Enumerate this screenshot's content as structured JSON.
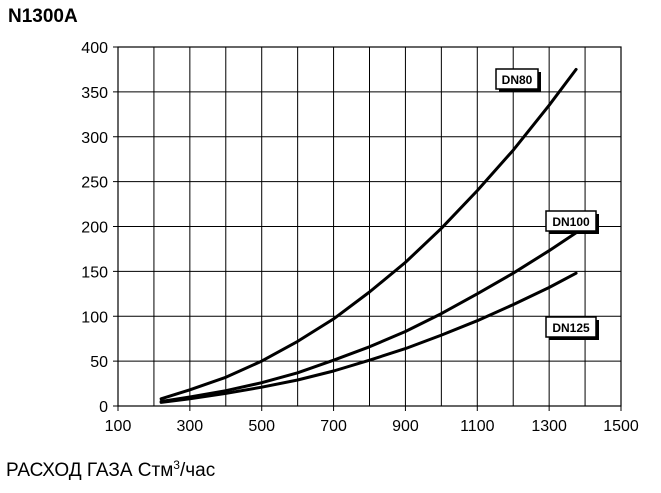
{
  "chart_data": {
    "type": "line",
    "title": "N1300A",
    "xlabel_prefix": "РАСХОД ГАЗА Стм",
    "xlabel_sup": "3",
    "xlabel_suffix": "/час",
    "ylabel": "",
    "xlim": [
      100,
      1500
    ],
    "ylim": [
      0,
      400
    ],
    "x_ticks": [
      100,
      300,
      500,
      700,
      900,
      1100,
      1300,
      1500
    ],
    "y_ticks": [
      0,
      50,
      100,
      150,
      200,
      250,
      300,
      350,
      400
    ],
    "grid": true,
    "series": [
      {
        "name": "DN80",
        "x": [
          220,
          300,
          400,
          500,
          600,
          700,
          800,
          900,
          1000,
          1100,
          1200,
          1300,
          1375
        ],
        "y": [
          8,
          18,
          32,
          50,
          72,
          97,
          127,
          160,
          198,
          240,
          285,
          335,
          375
        ]
      },
      {
        "name": "DN100",
        "x": [
          220,
          300,
          400,
          500,
          600,
          700,
          800,
          900,
          1000,
          1100,
          1200,
          1300,
          1375
        ],
        "y": [
          5,
          10,
          17,
          26,
          37,
          51,
          66,
          83,
          103,
          125,
          148,
          173,
          193
        ]
      },
      {
        "name": "DN125",
        "x": [
          220,
          300,
          400,
          500,
          600,
          700,
          800,
          900,
          1000,
          1100,
          1200,
          1300,
          1375
        ],
        "y": [
          4,
          8,
          14,
          21,
          29,
          39,
          51,
          64,
          79,
          95,
          113,
          132,
          148
        ]
      }
    ]
  }
}
